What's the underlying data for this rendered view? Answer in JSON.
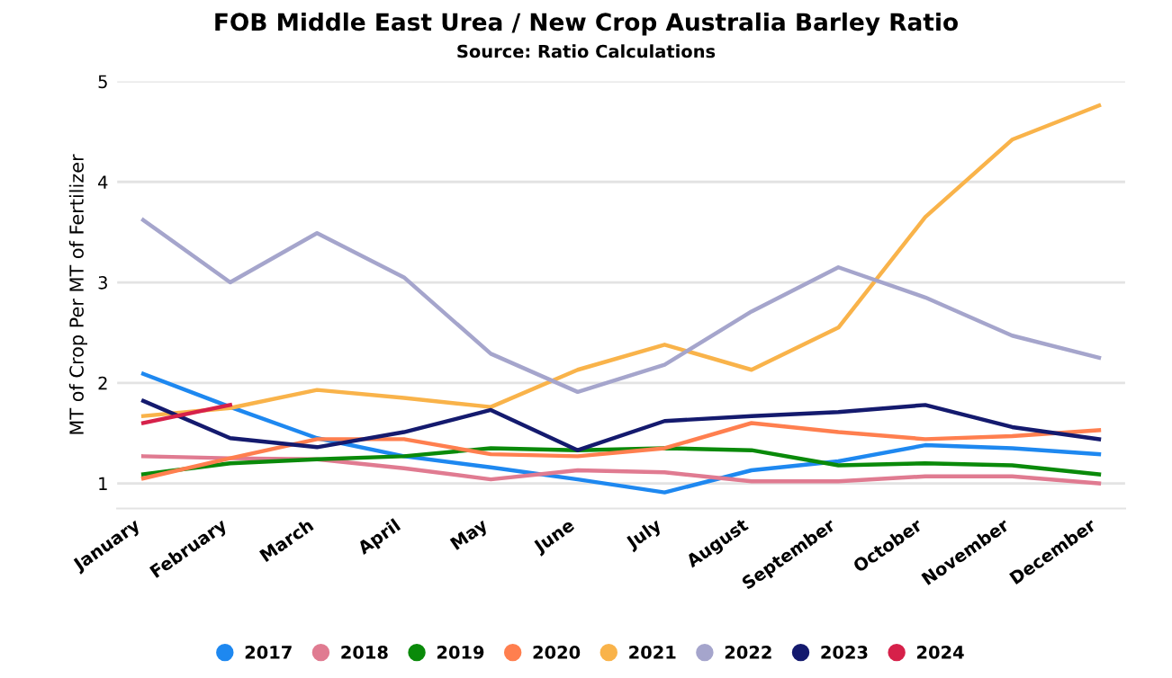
{
  "chart_data": {
    "type": "line",
    "title": "FOB Middle East Urea / New Crop Australia Barley Ratio",
    "subtitle": "Source: Ratio Calculations",
    "ylabel": "MT of Crop Per MT of Fertilizer",
    "categories": [
      "January",
      "February",
      "March",
      "April",
      "May",
      "June",
      "July",
      "August",
      "September",
      "October",
      "November",
      "December"
    ],
    "series": [
      {
        "name": "2017",
        "color": "#1e88f0",
        "values": [
          2.09,
          1.76,
          1.45,
          1.27,
          1.16,
          1.04,
          0.91,
          1.13,
          1.22,
          1.38,
          1.35,
          1.29
        ]
      },
      {
        "name": "2018",
        "color": "#e07b91",
        "values": [
          1.27,
          1.25,
          1.24,
          1.15,
          1.04,
          1.13,
          1.11,
          1.02,
          1.02,
          1.07,
          1.07,
          1.0
        ]
      },
      {
        "name": "2019",
        "color": "#0a8a0a",
        "values": [
          1.09,
          1.2,
          1.24,
          1.27,
          1.35,
          1.33,
          1.35,
          1.33,
          1.18,
          1.2,
          1.18,
          1.09
        ]
      },
      {
        "name": "2020",
        "color": "#ff7f4f",
        "values": [
          1.05,
          1.25,
          1.44,
          1.44,
          1.29,
          1.27,
          1.35,
          1.6,
          1.51,
          1.44,
          1.47,
          1.53
        ]
      },
      {
        "name": "2021",
        "color": "#f9b34a",
        "values": [
          1.67,
          1.75,
          1.93,
          1.85,
          1.76,
          2.13,
          2.38,
          2.13,
          2.55,
          3.65,
          4.42,
          4.76
        ]
      },
      {
        "name": "2022",
        "color": "#a5a5cc",
        "values": [
          3.62,
          3.0,
          3.49,
          3.05,
          2.29,
          1.91,
          2.18,
          2.71,
          3.15,
          2.85,
          2.47,
          2.25
        ]
      },
      {
        "name": "2023",
        "color": "#141a6e",
        "values": [
          1.82,
          1.45,
          1.36,
          1.51,
          1.73,
          1.33,
          1.62,
          1.67,
          1.71,
          1.78,
          1.56,
          1.44
        ]
      },
      {
        "name": "2024",
        "color": "#d6214a",
        "values": [
          1.6,
          1.78,
          null,
          null,
          null,
          null,
          null,
          null,
          null,
          null,
          null,
          null
        ]
      }
    ],
    "ylim": [
      0.75,
      5
    ],
    "yticks": [
      1,
      2,
      3,
      4,
      5
    ],
    "grid": "y",
    "legend": "bottom",
    "marker": "none",
    "line_style": "solid"
  }
}
